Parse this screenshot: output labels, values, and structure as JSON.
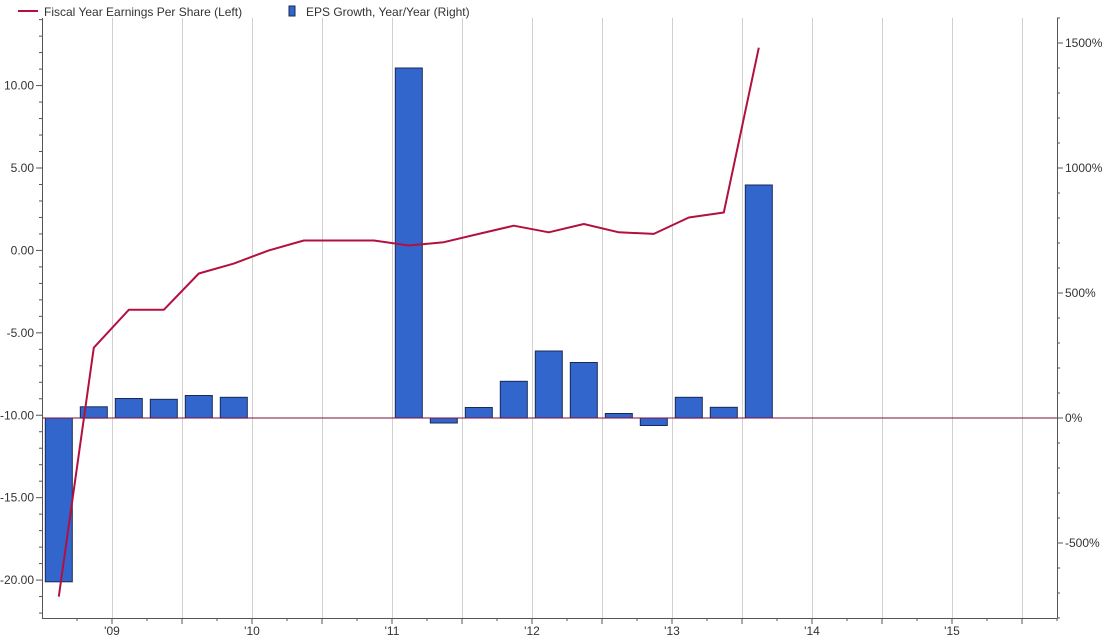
{
  "chart_data": {
    "type": "bar+line",
    "legend": [
      {
        "label": "Fiscal Year Earnings Per Share (Left)",
        "kind": "line",
        "color": "#b3103f"
      },
      {
        "label": "EPS Growth, Year/Year (Right)",
        "kind": "bar",
        "color": "#3366cc"
      }
    ],
    "x_axis": {
      "tick_labels": [
        "'09",
        "'10",
        "'11",
        "'12",
        "'13",
        "'14",
        "'15"
      ],
      "range": [
        2008.5,
        2015.75
      ]
    },
    "y_left": {
      "tick_labels": [
        "10.00",
        "5.00",
        "0.00",
        "-5.00",
        "-10.00",
        "-15.00",
        "-20.00"
      ],
      "tick_values": [
        10,
        5,
        0,
        -5,
        -10,
        -15,
        -20
      ],
      "range": [
        -22.3,
        14.1
      ]
    },
    "y_right": {
      "tick_labels": [
        "1500%",
        "1000%",
        "500%",
        "0%",
        "-500%"
      ],
      "tick_values": [
        1500,
        1000,
        500,
        0,
        -500
      ],
      "range": [
        -800,
        1600
      ]
    },
    "series": [
      {
        "name": "Fiscal Year Earnings Per Share (Left)",
        "type": "line",
        "axis": "left",
        "color": "#b3103f",
        "points": [
          {
            "x": 2008.62,
            "y": -21.0
          },
          {
            "x": 2008.87,
            "y": -5.9
          },
          {
            "x": 2009.12,
            "y": -3.6
          },
          {
            "x": 2009.37,
            "y": -3.6
          },
          {
            "x": 2009.62,
            "y": -1.4
          },
          {
            "x": 2009.87,
            "y": -0.8
          },
          {
            "x": 2010.12,
            "y": 0.0
          },
          {
            "x": 2010.37,
            "y": 0.6
          },
          {
            "x": 2010.62,
            "y": 0.6
          },
          {
            "x": 2010.87,
            "y": 0.6
          },
          {
            "x": 2011.12,
            "y": 0.3
          },
          {
            "x": 2011.37,
            "y": 0.5
          },
          {
            "x": 2011.62,
            "y": 1.0
          },
          {
            "x": 2011.87,
            "y": 1.5
          },
          {
            "x": 2012.12,
            "y": 1.1
          },
          {
            "x": 2012.37,
            "y": 1.6
          },
          {
            "x": 2012.62,
            "y": 1.1
          },
          {
            "x": 2012.87,
            "y": 1.0
          },
          {
            "x": 2013.12,
            "y": 2.0
          },
          {
            "x": 2013.37,
            "y": 2.3
          },
          {
            "x": 2013.62,
            "y": 12.3
          }
        ]
      },
      {
        "name": "EPS Growth, Year/Year (Right)",
        "type": "bar",
        "axis": "right",
        "color": "#3366cc",
        "points": [
          {
            "x": 2008.62,
            "y": -655
          },
          {
            "x": 2008.87,
            "y": 45
          },
          {
            "x": 2009.12,
            "y": 78
          },
          {
            "x": 2009.37,
            "y": 75
          },
          {
            "x": 2009.62,
            "y": 90
          },
          {
            "x": 2009.87,
            "y": 83
          },
          {
            "x": 2011.12,
            "y": 1400
          },
          {
            "x": 2011.37,
            "y": -20
          },
          {
            "x": 2011.62,
            "y": 42
          },
          {
            "x": 2011.87,
            "y": 147
          },
          {
            "x": 2012.12,
            "y": 268
          },
          {
            "x": 2012.37,
            "y": 222
          },
          {
            "x": 2012.62,
            "y": 18
          },
          {
            "x": 2012.87,
            "y": -30
          },
          {
            "x": 2013.12,
            "y": 83
          },
          {
            "x": 2013.37,
            "y": 43
          },
          {
            "x": 2013.62,
            "y": 932
          }
        ]
      }
    ],
    "grid": {
      "vertical": true,
      "horizontal": false
    },
    "zero_line_axis": "right"
  }
}
